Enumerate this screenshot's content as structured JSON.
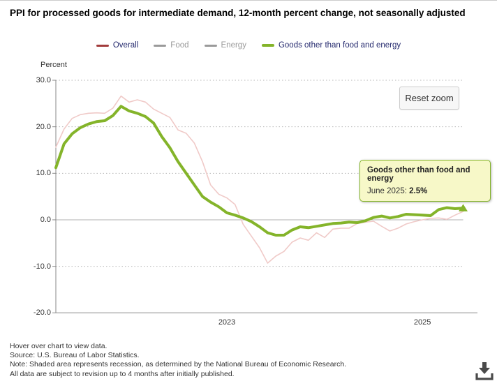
{
  "page": {
    "title": "PPI for processed goods for intermediate demand, 12-month percent change, not seasonally adjusted",
    "reset_zoom_label": "Reset zoom",
    "footer_lines": [
      "Hover over chart to view data.",
      "Source: U.S. Bureau of Labor Statistics.",
      "Note: Shaded area represents recession, as determined by the National Bureau of Economic Research.",
      "All data are subject to revision up to 4 months after initially published."
    ]
  },
  "tooltip": {
    "title": "Goods other than food and energy",
    "period": "June 2025:",
    "value": "2.5%"
  },
  "colors": {
    "accent_green": "#84b42a",
    "faded_overall_line": "#f0cac8",
    "legend_overall_swatch": "#a23c3c",
    "legend_disabled": "#9a9a9a",
    "legend_text": "#252a6e",
    "tooltip_bg": "#f7f8c8",
    "axis_line": "#888888",
    "grid_dotted": "#b5b5b5",
    "zero_line": "#b0b0b0"
  },
  "chart_data": {
    "type": "line",
    "title": "PPI for processed goods for intermediate demand, 12-month percent change, not seasonally adjusted",
    "ylabel": "Percent",
    "ylim": [
      -20,
      30
    ],
    "y_tick_values": [
      30,
      20,
      10,
      0,
      -10,
      -20
    ],
    "y_tick_labels": [
      "30.0",
      "20.0",
      "10.0",
      "0.0",
      "-10.0",
      "-20.0"
    ],
    "x_start": "2021-04",
    "x_end": "2025-06",
    "x_interval": "month",
    "x_tick_labels": [
      "2023",
      "2025"
    ],
    "x_tick_month_index": [
      21,
      45
    ],
    "grid": "horizontal-dotted",
    "legend_position": "top-center",
    "legend": [
      {
        "label": "Overall",
        "swatch_color": "#a23c3c",
        "enabled": true
      },
      {
        "label": "Food",
        "swatch_color": "#9a9a9a",
        "enabled": false
      },
      {
        "label": "Energy",
        "swatch_color": "#9a9a9a",
        "enabled": false
      },
      {
        "label": "Goods other than food and energy",
        "swatch_color": "#84b42a",
        "enabled": true
      }
    ],
    "series": [
      {
        "name": "Overall",
        "line_color": "#f0cac8",
        "line_width": 1.6,
        "values": [
          15.6,
          19.5,
          21.8,
          22.6,
          22.9,
          23.0,
          22.9,
          24.0,
          26.6,
          25.3,
          25.8,
          25.3,
          23.8,
          22.9,
          22.0,
          19.3,
          18.6,
          16.5,
          12.5,
          7.5,
          5.5,
          4.7,
          3.3,
          -1.0,
          -3.5,
          -6.0,
          -9.3,
          -7.8,
          -6.8,
          -4.8,
          -3.9,
          -4.4,
          -2.8,
          -3.8,
          -2.0,
          -1.8,
          -1.8,
          -0.8,
          -0.5,
          -0.3,
          -1.4,
          -2.4,
          -1.8,
          -0.9,
          -0.4,
          0.0,
          0.3,
          0.4,
          0.1,
          1.0,
          1.8
        ]
      },
      {
        "name": "Goods other than food and energy",
        "line_color": "#84b42a",
        "line_width": 4,
        "values": [
          11.2,
          16.3,
          18.5,
          19.8,
          20.6,
          21.1,
          21.3,
          22.4,
          24.4,
          23.4,
          22.9,
          22.2,
          20.8,
          17.9,
          15.5,
          12.5,
          10.0,
          7.5,
          5.0,
          3.8,
          2.8,
          1.5,
          1.0,
          0.4,
          -0.4,
          -1.5,
          -2.8,
          -3.3,
          -3.3,
          -2.2,
          -1.5,
          -1.7,
          -1.4,
          -1.1,
          -0.8,
          -0.7,
          -0.5,
          -0.6,
          -0.2,
          0.5,
          0.8,
          0.4,
          0.7,
          1.2,
          1.1,
          1.0,
          0.9,
          2.2,
          2.6,
          2.4,
          2.5
        ]
      }
    ],
    "highlight": {
      "series": "Goods other than food and energy",
      "x": "June 2025",
      "value": 2.5,
      "marker": "triangle-up"
    }
  }
}
